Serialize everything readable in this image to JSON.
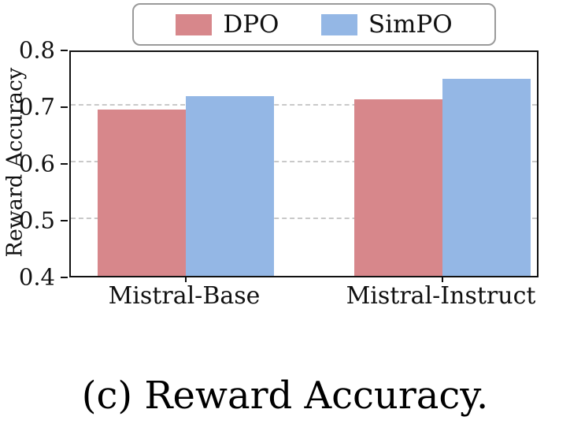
{
  "chart_data": {
    "type": "bar",
    "categories": [
      "Mistral-Base",
      "Mistral-Instruct"
    ],
    "series": [
      {
        "name": "DPO",
        "color": "#d7878b",
        "values": [
          0.697,
          0.716
        ]
      },
      {
        "name": "SimPO",
        "color": "#94b7e5",
        "values": [
          0.721,
          0.752
        ]
      }
    ],
    "title": "",
    "xlabel": "",
    "ylabel": "Reward Accuracy",
    "ylim": [
      0.4,
      0.8
    ],
    "yticks": [
      0.4,
      0.5,
      0.6,
      0.7,
      0.8
    ],
    "ytick_labels": [
      "0.4",
      "0.5",
      "0.6",
      "0.7",
      "0.8"
    ],
    "grid": "horizontal-dashed",
    "legend_position": "top-center"
  },
  "legend": {
    "items": [
      {
        "label": "DPO"
      },
      {
        "label": "SimPO"
      }
    ]
  },
  "caption": "(c) Reward Accuracy."
}
